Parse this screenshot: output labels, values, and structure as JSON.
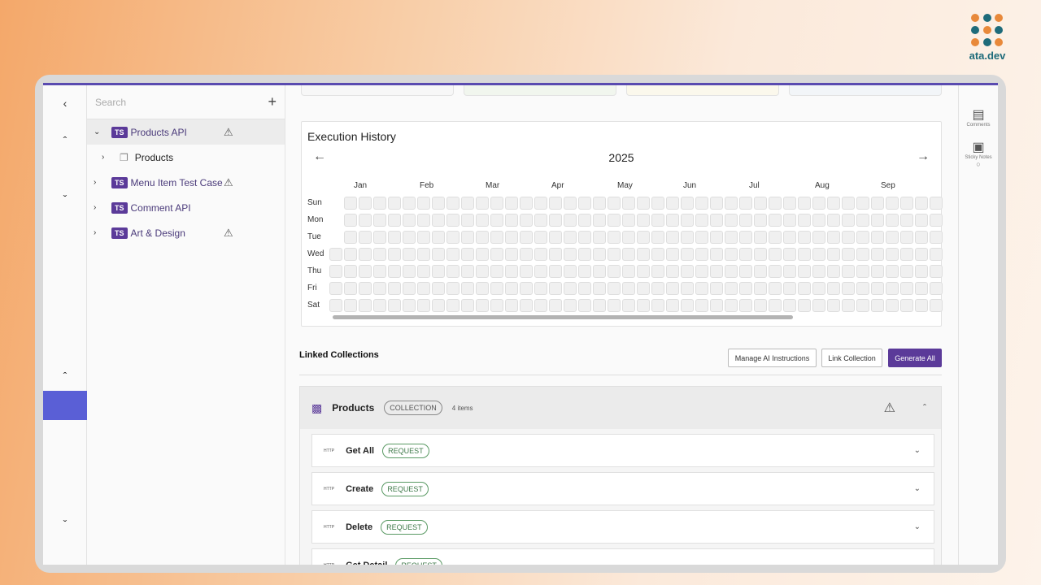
{
  "brand": {
    "logo_text": "ata.dev"
  },
  "sidebar": {
    "search_placeholder": "Search",
    "items": [
      {
        "badge": "TS",
        "label": "Products API",
        "expanded": true,
        "warning": true
      },
      {
        "label": "Products",
        "type": "folder"
      },
      {
        "badge": "TS",
        "label": "Menu Item Test Case",
        "warning": true
      },
      {
        "badge": "TS",
        "label": "Comment API",
        "warning": false
      },
      {
        "badge": "TS",
        "label": "Art & Design",
        "warning": true
      }
    ]
  },
  "history": {
    "title": "Execution History",
    "year": "2025",
    "months": [
      "Jan",
      "Feb",
      "Mar",
      "Apr",
      "May",
      "Jun",
      "Jul",
      "Aug",
      "Sep"
    ],
    "days": [
      "Sun",
      "Mon",
      "Tue",
      "Wed",
      "Thu",
      "Fri",
      "Sat"
    ]
  },
  "linked": {
    "title": "Linked Collections",
    "buttons": {
      "manage": "Manage AI Instructions",
      "link": "Link Collection",
      "generate": "Generate All"
    },
    "collection": {
      "name": "Products",
      "tag": "COLLECTION",
      "count": "4 items"
    },
    "requests": [
      {
        "http": "HTTP",
        "name": "Get All",
        "tag": "REQUEST"
      },
      {
        "http": "HTTP",
        "name": "Create",
        "tag": "REQUEST"
      },
      {
        "http": "HTTP",
        "name": "Delete",
        "tag": "REQUEST"
      },
      {
        "http": "HTTP",
        "name": "Get Detail",
        "tag": "REQUEST"
      }
    ]
  },
  "right_rail": {
    "comments": "Comments",
    "sticky": "Sticky Notes"
  },
  "colors": {
    "accent": "#5b3a99",
    "rail_highlight": "#5a5fd6"
  }
}
